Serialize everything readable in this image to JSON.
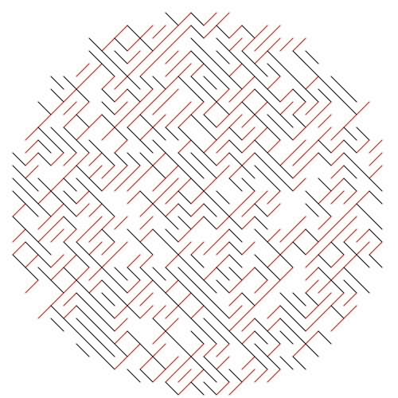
{
  "art": {
    "pattern": "diagonal-maze-in-circle",
    "colors": {
      "background": "#ffffff",
      "falling_stroke": "#1a1a1a",
      "rising_stroke": "#e01b1b"
    },
    "description_free": true
  }
}
